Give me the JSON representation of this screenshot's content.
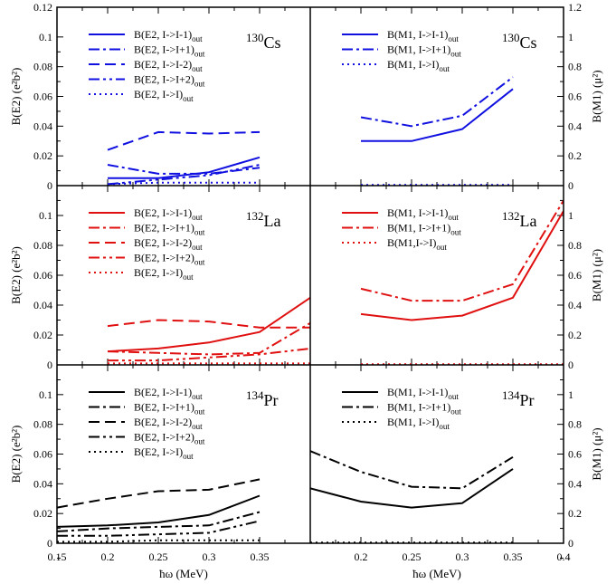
{
  "chart_data": {
    "type": "line",
    "title": "",
    "xlabel": "ħω (MeV)",
    "ylabel_left": "B(E2) (e²b²)",
    "ylabel_right": "B(M1) (μ²)",
    "x_left": [
      0.2,
      0.25,
      0.3,
      0.35
    ],
    "x_right": [
      0.2,
      0.25,
      0.3,
      0.35
    ],
    "xlim_left": [
      0.15,
      0.4
    ],
    "xlim_right": [
      0.15,
      0.4
    ],
    "xticks_left": [
      "0.15",
      "0.2",
      "0.25",
      "0.3",
      "0.35"
    ],
    "xticks_right": [
      "0.2",
      "0.25",
      "0.3",
      "0.35",
      "0.4"
    ],
    "ylim_e2": [
      0,
      0.12
    ],
    "ylim_m1": [
      0,
      1.2
    ],
    "yticks_e2": [
      "0",
      "0.02",
      "0.04",
      "0.06",
      "0.08",
      "0.1",
      "0.12"
    ],
    "yticks_e2_lower": [
      "0",
      "0.02",
      "0.04",
      "0.06",
      "0.08",
      "0.1"
    ],
    "yticks_m1": [
      "0",
      "0.2",
      "0.4",
      "0.6",
      "0.8",
      "1",
      "1.2"
    ],
    "yticks_m1_lower": [
      "0",
      "0.2",
      "0.4",
      "0.6",
      "0.8",
      "1"
    ],
    "rows": [
      {
        "nucleus_mass": "130",
        "nucleus_symbol": "Cs",
        "color": "#1010e0",
        "e2_series": [
          {
            "name": "B(E2, I->I-1)",
            "sub": "out",
            "dash": "solid",
            "x": [
              0.2,
              0.25,
              0.3,
              0.35
            ],
            "values": [
              0.005,
              0.005,
              0.009,
              0.019
            ]
          },
          {
            "name": "B(E2, I->I+1)",
            "sub": "out",
            "dash": "dashdot",
            "x": [
              0.2,
              0.25,
              0.3,
              0.35
            ],
            "values": [
              0.014,
              0.008,
              0.008,
              0.012
            ]
          },
          {
            "name": "B(E2, I->I-2)",
            "sub": "out",
            "dash": "dashed",
            "x": [
              0.2,
              0.25,
              0.3,
              0.35
            ],
            "values": [
              0.024,
              0.036,
              0.035,
              0.036
            ]
          },
          {
            "name": "B(E2, I->I+2)",
            "sub": "out",
            "dash": "dashdotdot",
            "x": [
              0.2,
              0.25,
              0.3,
              0.35
            ],
            "values": [
              0.001,
              0.004,
              0.007,
              0.014
            ]
          },
          {
            "name": "B(E2, I->I)",
            "sub": "out",
            "dash": "dotted",
            "x": [
              0.2,
              0.25,
              0.3,
              0.35
            ],
            "values": [
              0.001,
              0.002,
              0.002,
              0.002
            ]
          }
        ],
        "m1_series": [
          {
            "name": "B(M1, I->I-1)",
            "sub": "out",
            "dash": "solid",
            "x": [
              0.2,
              0.25,
              0.3,
              0.35
            ],
            "values": [
              0.3,
              0.3,
              0.38,
              0.65
            ]
          },
          {
            "name": "B(M1, I->I+1)",
            "sub": "out",
            "dash": "dashdot",
            "x": [
              0.2,
              0.25,
              0.3,
              0.35
            ],
            "values": [
              0.46,
              0.4,
              0.47,
              0.73
            ]
          },
          {
            "name": "B(M1, I->I)",
            "sub": "out",
            "dash": "dotted",
            "x": [
              0.2,
              0.25,
              0.3,
              0.35
            ],
            "values": [
              0.005,
              0.005,
              0.005,
              0.005
            ]
          }
        ]
      },
      {
        "nucleus_mass": "132",
        "nucleus_symbol": "La",
        "color": "#e01010",
        "e2_series": [
          {
            "name": "B(E2, I->I-1)",
            "sub": "out",
            "dash": "solid",
            "x": [
              0.2,
              0.25,
              0.3,
              0.35,
              0.4
            ],
            "values": [
              0.009,
              0.011,
              0.015,
              0.022,
              0.045
            ]
          },
          {
            "name": "B(E2, I->I+1)",
            "sub": "out",
            "dash": "dashdot",
            "x": [
              0.2,
              0.25,
              0.3,
              0.35,
              0.4
            ],
            "values": [
              0.009,
              0.008,
              0.007,
              0.008,
              0.028
            ]
          },
          {
            "name": "B(E2, I->I-2)",
            "sub": "out",
            "dash": "dashed",
            "x": [
              0.2,
              0.25,
              0.3,
              0.35,
              0.4
            ],
            "values": [
              0.026,
              0.03,
              0.029,
              0.025,
              0.025
            ]
          },
          {
            "name": "B(E2, I->I+2)",
            "sub": "out",
            "dash": "dashdotdot",
            "x": [
              0.2,
              0.25,
              0.3,
              0.35,
              0.4
            ],
            "values": [
              0.003,
              0.003,
              0.005,
              0.007,
              0.011
            ]
          },
          {
            "name": "B(E2, I->I)",
            "sub": "out",
            "dash": "dotted",
            "x": [
              0.2,
              0.25,
              0.3,
              0.35,
              0.4
            ],
            "values": [
              0.001,
              0.001,
              0.001,
              0.001,
              0.001
            ]
          }
        ],
        "m1_series": [
          {
            "name": "B(M1, I->I-1)",
            "sub": "out",
            "dash": "solid",
            "x": [
              0.2,
              0.25,
              0.3,
              0.35,
              0.4
            ],
            "values": [
              0.34,
              0.3,
              0.33,
              0.45,
              1.03
            ]
          },
          {
            "name": "B(M1, I->I+1)",
            "sub": "out",
            "dash": "dashdot",
            "x": [
              0.2,
              0.25,
              0.3,
              0.35,
              0.4
            ],
            "values": [
              0.51,
              0.43,
              0.43,
              0.54,
              1.1
            ]
          },
          {
            "name": "B(M1,I->I)",
            "sub": "out",
            "dash": "dotted",
            "x": [
              0.2,
              0.25,
              0.3,
              0.35,
              0.4
            ],
            "values": [
              0.005,
              0.005,
              0.005,
              0.005,
              0.005
            ]
          }
        ]
      },
      {
        "nucleus_mass": "134",
        "nucleus_symbol": "Pr",
        "color": "#000000",
        "e2_series": [
          {
            "name": "B(E2, I->I-1)",
            "sub": "out",
            "dash": "solid",
            "x": [
              0.15,
              0.2,
              0.25,
              0.3,
              0.35
            ],
            "values": [
              0.011,
              0.012,
              0.014,
              0.019,
              0.032
            ]
          },
          {
            "name": "B(E2, I->I+1)",
            "sub": "out",
            "dash": "dashdot",
            "x": [
              0.15,
              0.2,
              0.25,
              0.3,
              0.35
            ],
            "values": [
              0.008,
              0.01,
              0.011,
              0.012,
              0.021
            ]
          },
          {
            "name": "B(E2, I->I-2)",
            "sub": "out",
            "dash": "dashed",
            "x": [
              0.15,
              0.2,
              0.25,
              0.3,
              0.35
            ],
            "values": [
              0.024,
              0.03,
              0.035,
              0.036,
              0.043
            ]
          },
          {
            "name": "B(E2, I->I+2)",
            "sub": "out",
            "dash": "dashdotdot",
            "x": [
              0.15,
              0.2,
              0.25,
              0.3,
              0.35
            ],
            "values": [
              0.005,
              0.005,
              0.006,
              0.007,
              0.015
            ]
          },
          {
            "name": "B(E2, I->I)",
            "sub": "out",
            "dash": "dotted",
            "x": [
              0.15,
              0.2,
              0.25,
              0.3,
              0.35
            ],
            "values": [
              0.001,
              0.001,
              0.002,
              0.002,
              0.002
            ]
          }
        ],
        "m1_series": [
          {
            "name": "B(M1, I->I-1)",
            "sub": "out",
            "dash": "solid",
            "x": [
              0.15,
              0.2,
              0.25,
              0.3,
              0.35
            ],
            "values": [
              0.37,
              0.28,
              0.24,
              0.27,
              0.5
            ]
          },
          {
            "name": "B(M1, I->I+1)",
            "sub": "out",
            "dash": "dashdot",
            "x": [
              0.15,
              0.2,
              0.25,
              0.3,
              0.35
            ],
            "values": [
              0.62,
              0.48,
              0.38,
              0.37,
              0.58
            ]
          },
          {
            "name": "B(M1, I->I)",
            "sub": "out",
            "dash": "dotted",
            "x": [
              0.15,
              0.2,
              0.25,
              0.3,
              0.35
            ],
            "values": [
              0.005,
              0.005,
              0.005,
              0.005,
              0.005
            ]
          }
        ]
      }
    ]
  }
}
